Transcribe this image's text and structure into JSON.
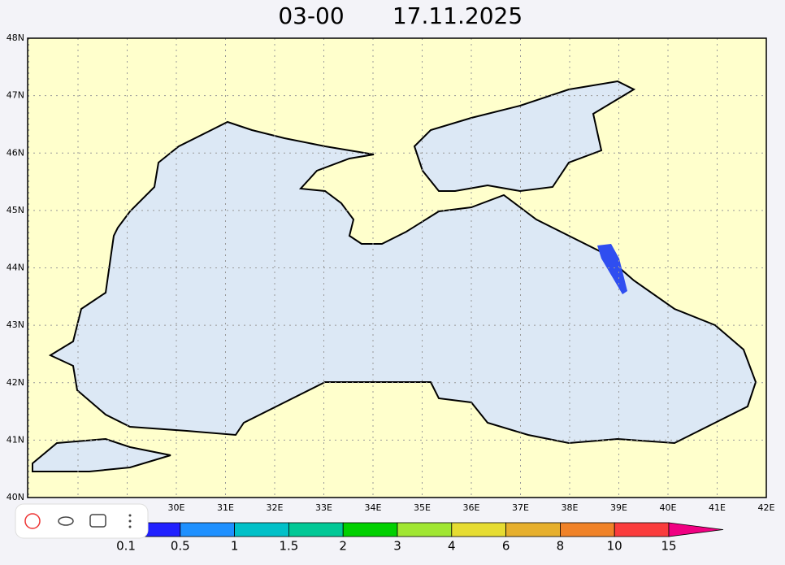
{
  "header": {
    "time": "03-00",
    "date": "17.11.2025"
  },
  "map": {
    "lat_labels": [
      "48N",
      "47N",
      "46N",
      "45N",
      "44N",
      "43N",
      "42N",
      "41N",
      "40N"
    ],
    "lon_labels": [
      "30E",
      "31E",
      "32E",
      "33E",
      "34E",
      "35E",
      "36E",
      "37E",
      "38E",
      "39E",
      "40E",
      "41E",
      "42E"
    ]
  },
  "legend": {
    "labels": [
      "0.1",
      "0.5",
      "1",
      "1.5",
      "2",
      "3",
      "4",
      "6",
      "8",
      "10",
      "15"
    ]
  }
}
